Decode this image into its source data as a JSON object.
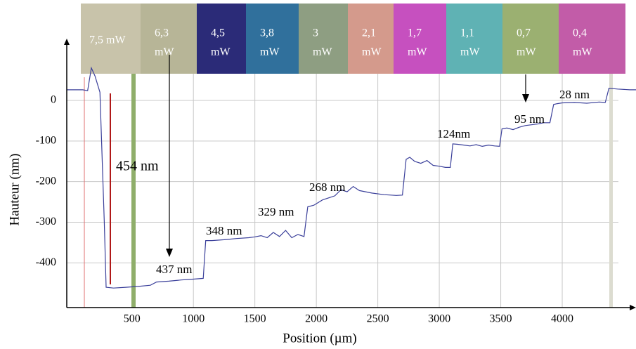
{
  "chart_data": {
    "type": "line",
    "x_label": "Position (µm)",
    "y_label": "Hauteur  (nm)",
    "color": "#3a3f9a",
    "grid": true,
    "xlim": [
      -30,
      4600
    ],
    "ylim": [
      -510,
      140
    ],
    "xticks": [
      500,
      1000,
      1500,
      2000,
      2500,
      3000,
      3500,
      4000
    ],
    "yticks": [
      0,
      -100,
      -200,
      -300,
      -400
    ],
    "x": [
      -30,
      100,
      140,
      170,
      200,
      240,
      275,
      290,
      350,
      450,
      550,
      650,
      700,
      800,
      900,
      1000,
      1080,
      1100,
      1150,
      1250,
      1350,
      1450,
      1500,
      1550,
      1600,
      1650,
      1700,
      1750,
      1800,
      1850,
      1900,
      1930,
      1980,
      2050,
      2100,
      2150,
      2200,
      2250,
      2300,
      2350,
      2450,
      2550,
      2650,
      2700,
      2730,
      2760,
      2800,
      2850,
      2900,
      2950,
      3000,
      3050,
      3090,
      3110,
      3150,
      3200,
      3250,
      3300,
      3350,
      3400,
      3450,
      3490,
      3510,
      3550,
      3600,
      3650,
      3700,
      3750,
      3800,
      3850,
      3900,
      3930,
      3960,
      4000,
      4100,
      4200,
      4300,
      4350,
      4380,
      4450,
      4550,
      4600
    ],
    "values": [
      26,
      26,
      24,
      80,
      60,
      20,
      -300,
      -460,
      -462,
      -460,
      -458,
      -455,
      -447,
      -445,
      -442,
      -440,
      -438,
      -345,
      -345,
      -343,
      -340,
      -338,
      -336,
      -333,
      -338,
      -325,
      -335,
      -320,
      -338,
      -330,
      -335,
      -262,
      -258,
      -245,
      -240,
      -235,
      -220,
      -225,
      -212,
      -222,
      -228,
      -232,
      -234,
      -233,
      -145,
      -140,
      -150,
      -155,
      -148,
      -160,
      -162,
      -165,
      -165,
      -107,
      -108,
      -110,
      -112,
      -109,
      -113,
      -110,
      -112,
      -113,
      -70,
      -68,
      -72,
      -66,
      -62,
      -60,
      -58,
      -55,
      -55,
      -10,
      -8,
      -6,
      -5,
      -7,
      -4,
      -5,
      30,
      28,
      26,
      26
    ],
    "annotations": [
      "454 nm",
      "437 nm",
      "348 nm",
      "329 nm",
      "268 nm",
      "124nm",
      "95 nm",
      "28 nm"
    ],
    "strip": [
      {
        "label": [
          "7,5 mW"
        ],
        "color": "#c8c3aa"
      },
      {
        "label": [
          "6,3",
          "mW"
        ],
        "color": "#b7b597"
      },
      {
        "label": [
          "4,5",
          "mW"
        ],
        "color": "#2b2b78"
      },
      {
        "label": [
          "3,8",
          "mW"
        ],
        "color": "#30709c"
      },
      {
        "label": [
          "3",
          "mW"
        ],
        "color": "#8e9e82"
      },
      {
        "label": [
          "2,1",
          "mW"
        ],
        "color": "#d49a8c"
      },
      {
        "label": [
          "1,7",
          "mW"
        ],
        "color": "#c650bf"
      },
      {
        "label": [
          "1,1",
          "mW"
        ],
        "color": "#5fb2b4"
      },
      {
        "label": [
          "0,7",
          "mW"
        ],
        "color": "#9bb071"
      },
      {
        "label": [
          "0,4",
          "mW"
        ],
        "color": "#c25ca8"
      }
    ]
  }
}
